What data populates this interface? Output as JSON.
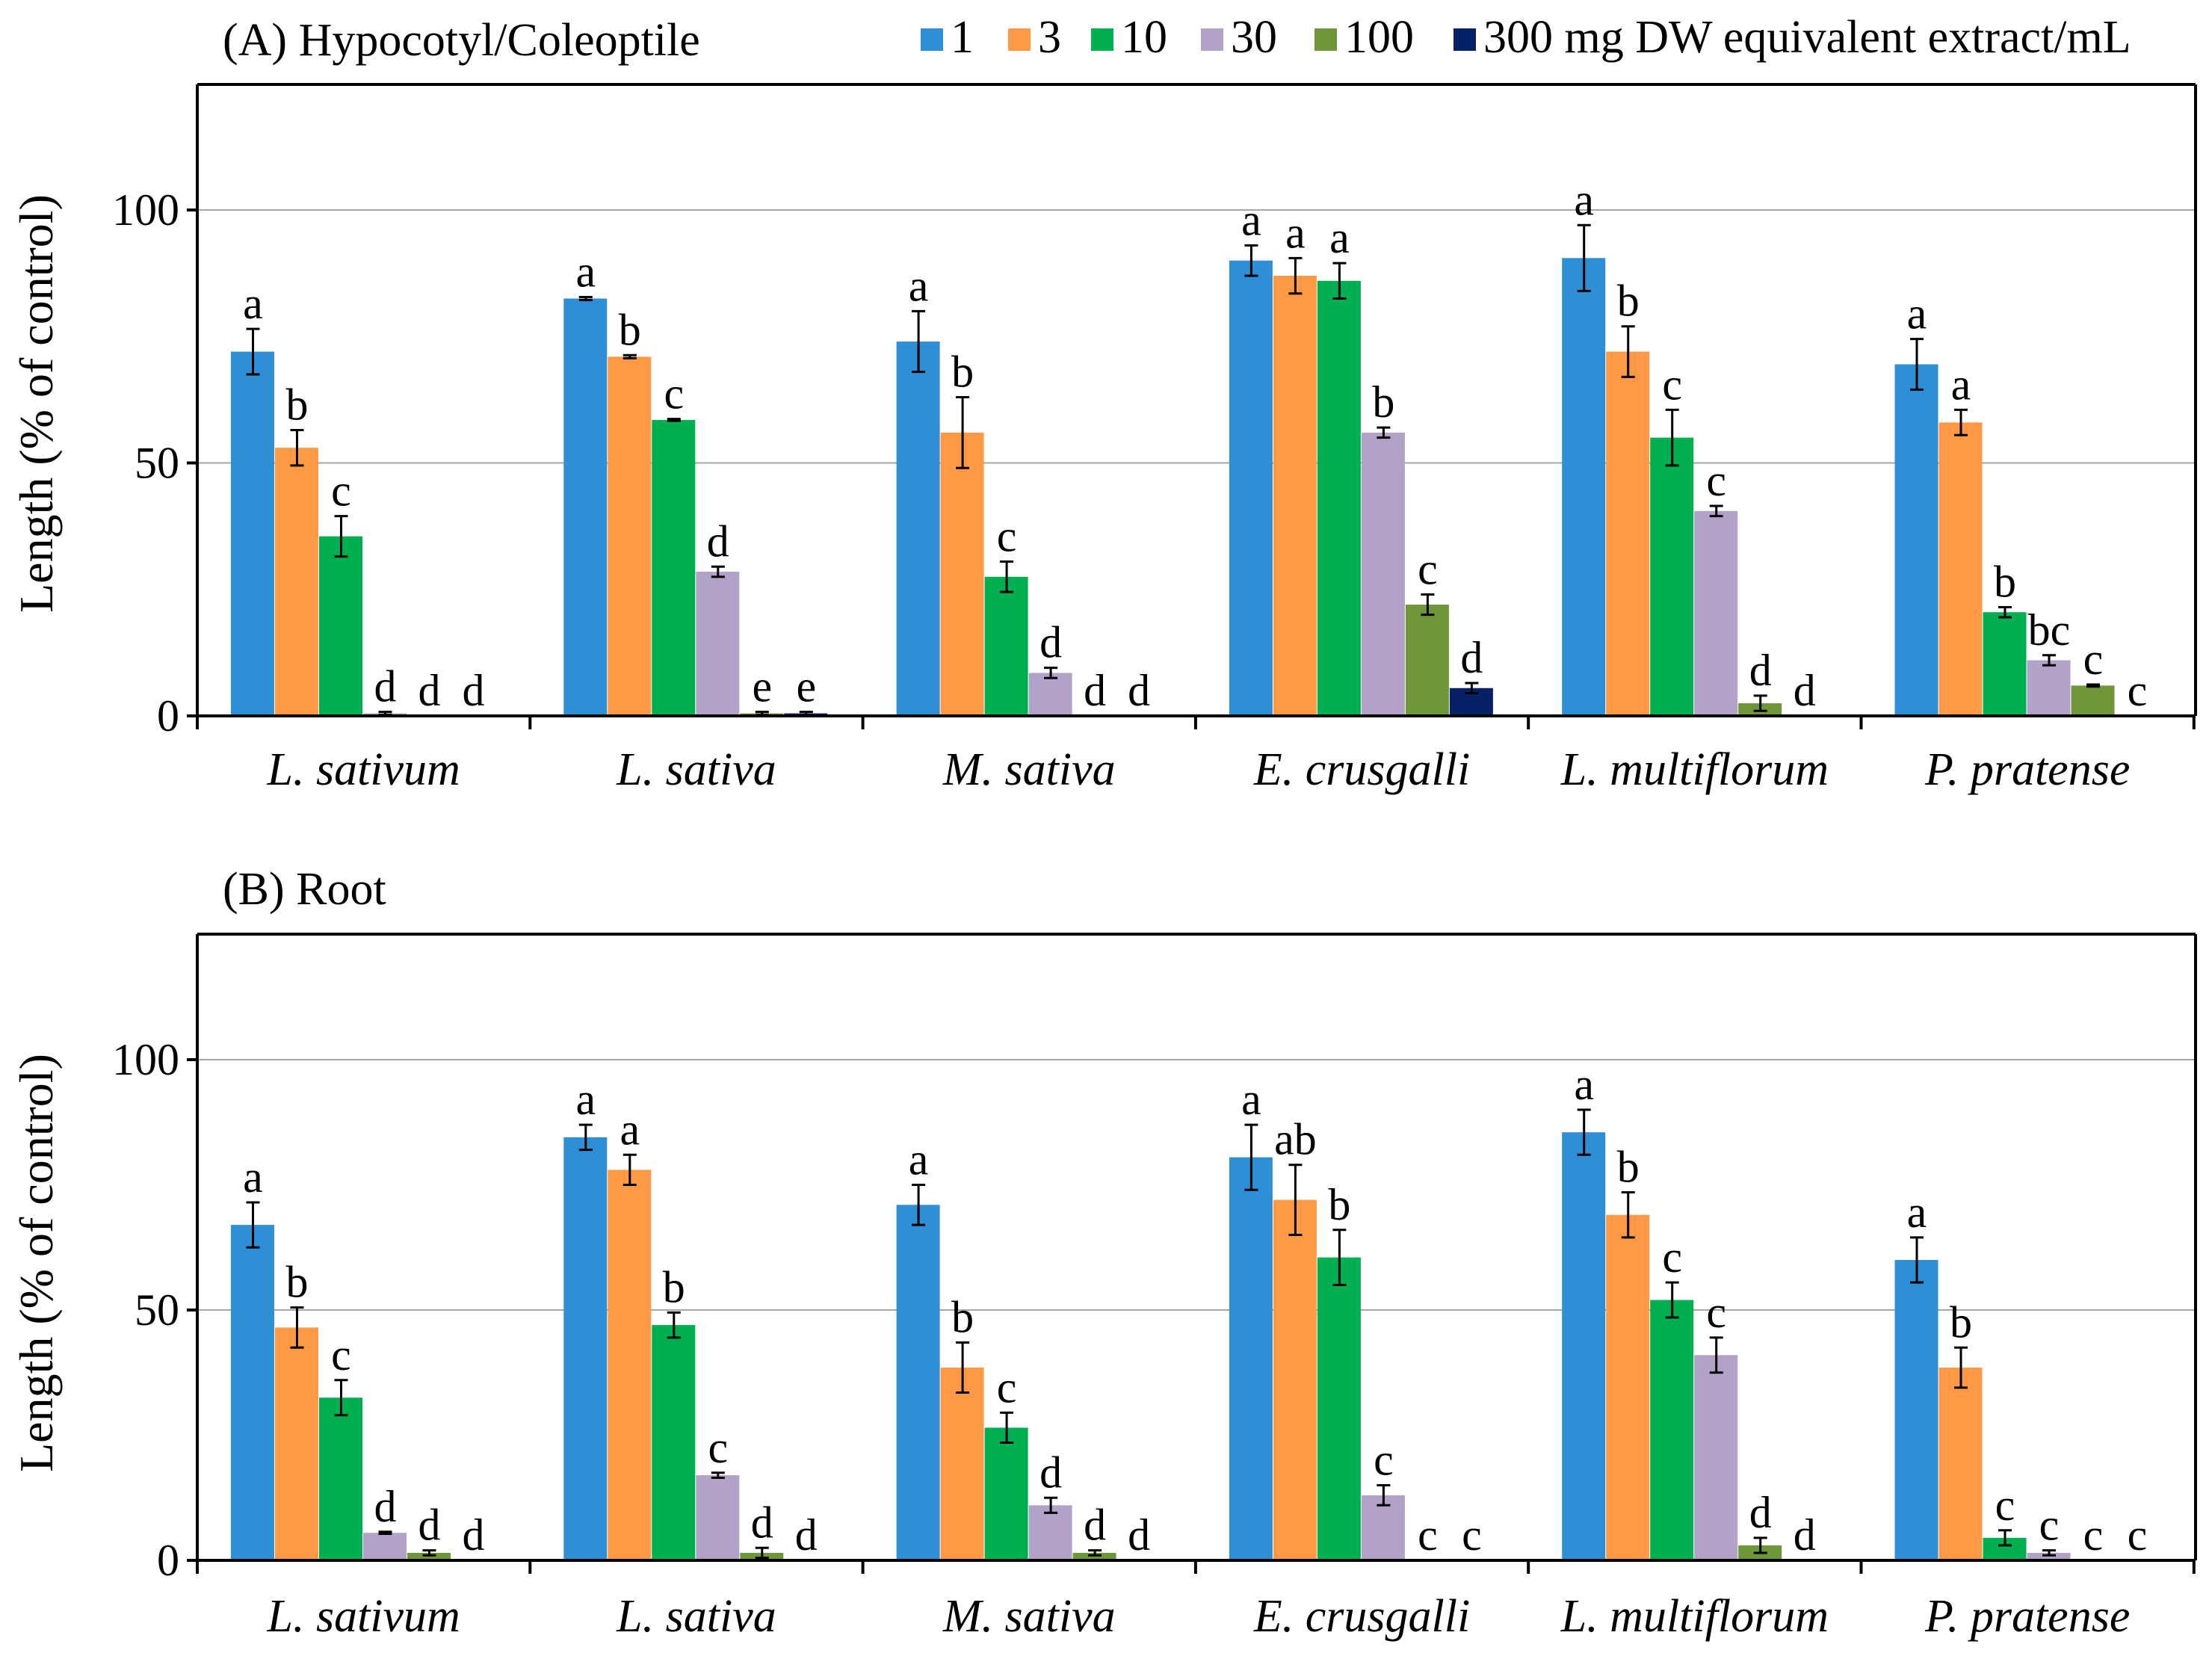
{
  "chart_data": {
    "type": "bar",
    "legend": {
      "entries": [
        "1",
        "3",
        "10",
        "30",
        "100",
        "300 mg DW equivalent extract/mL"
      ],
      "placement": "top-right"
    },
    "colors": [
      "#2E8FD6",
      "#FF9945",
      "#00B050",
      "#B3A2C7",
      "#70963A",
      "#062166"
    ],
    "panels": [
      {
        "title": "(A) Hypocotyl/Coleoptile",
        "ylabel": "Length (% of control)",
        "ylim": [
          0,
          125
        ],
        "yticks": [
          0,
          50,
          100
        ],
        "grid": true,
        "categories": [
          "L. sativum",
          "L. sativa",
          "M. sativa",
          "E. crusgalli",
          "L. multiflorum",
          "P. pratense"
        ],
        "series": [
          {
            "name": "1",
            "values": [
              72,
              82.5,
              74,
              90,
              90.5,
              69.5
            ],
            "errors": [
              4.5,
              0.3,
              6,
              3,
              6.5,
              5
            ],
            "letters": [
              "a",
              "a",
              "a",
              "a",
              "a",
              "a"
            ]
          },
          {
            "name": "3",
            "values": [
              53,
              71,
              56,
              87,
              72,
              58
            ],
            "errors": [
              3.5,
              0.3,
              7,
              3.5,
              5,
              2.5
            ],
            "letters": [
              "b",
              "b",
              "b",
              "a",
              "b",
              "a"
            ]
          },
          {
            "name": "10",
            "values": [
              35.5,
              58.5,
              27.5,
              86,
              55,
              20.5
            ],
            "errors": [
              4,
              0.2,
              3,
              3.5,
              5.5,
              1
            ],
            "letters": [
              "c",
              "c",
              "c",
              "a",
              "c",
              "b"
            ]
          },
          {
            "name": "30",
            "values": [
              0.5,
              28.5,
              8.5,
              56,
              40.5,
              11
            ],
            "errors": [
              0.3,
              1,
              1,
              1,
              1,
              1
            ],
            "letters": [
              "d",
              "d",
              "d",
              "b",
              "c",
              "bc"
            ]
          },
          {
            "name": "100",
            "values": [
              0,
              0.5,
              0,
              22,
              2.5,
              6
            ],
            "errors": [
              0,
              0.3,
              0,
              2,
              1.5,
              0.2
            ],
            "letters": [
              "d",
              "e",
              "d",
              "c",
              "d",
              "c"
            ]
          },
          {
            "name": "300 mg DW equivalent extract/mL",
            "values": [
              0,
              0.5,
              0,
              5.5,
              0,
              0
            ],
            "errors": [
              0,
              0.3,
              0,
              1,
              0,
              0
            ],
            "letters": [
              "d",
              "e",
              "d",
              "d",
              "d",
              "c"
            ]
          }
        ]
      },
      {
        "title": "(B) Root",
        "ylabel": "Length (% of control)",
        "ylim": [
          0,
          125
        ],
        "yticks": [
          0,
          50,
          100
        ],
        "grid": true,
        "categories": [
          "L. sativum",
          "L. sativa",
          "M. sativa",
          "E. crusgalli",
          "L. multiflorum",
          "P. pratense"
        ],
        "series": [
          {
            "name": "1",
            "values": [
              67,
              84.5,
              71,
              80.5,
              85.5,
              60
            ],
            "errors": [
              4.5,
              2.5,
              4,
              6.5,
              4.5,
              4.5
            ],
            "letters": [
              "a",
              "a",
              "a",
              "a",
              "a",
              "a"
            ]
          },
          {
            "name": "3",
            "values": [
              46.5,
              78,
              38.5,
              72,
              69,
              38.5
            ],
            "errors": [
              4,
              3,
              5,
              7,
              4.5,
              4
            ],
            "letters": [
              "b",
              "a",
              "b",
              "ab",
              "b",
              "b"
            ]
          },
          {
            "name": "10",
            "values": [
              32.5,
              47,
              26.5,
              60.5,
              52,
              4.5
            ],
            "errors": [
              3.5,
              2.5,
              3,
              5.5,
              3.5,
              1.5
            ],
            "letters": [
              "c",
              "b",
              "c",
              "b",
              "c",
              "c"
            ]
          },
          {
            "name": "30",
            "values": [
              5.5,
              17,
              11,
              13,
              41,
              1.5
            ],
            "errors": [
              0.2,
              0.5,
              1.5,
              2,
              3.5,
              0.5
            ],
            "letters": [
              "d",
              "c",
              "d",
              "c",
              "c",
              "c"
            ]
          },
          {
            "name": "100",
            "values": [
              1.5,
              1.5,
              1.5,
              0,
              3,
              0
            ],
            "errors": [
              0.5,
              1,
              0.5,
              0,
              1.5,
              0
            ],
            "letters": [
              "d",
              "d",
              "d",
              "c",
              "d",
              "c"
            ]
          },
          {
            "name": "300 mg DW equivalent extract/mL",
            "values": [
              0,
              0,
              0,
              0,
              0,
              0
            ],
            "errors": [
              0,
              0,
              0,
              0,
              0,
              0
            ],
            "letters": [
              "d",
              "d",
              "d",
              "c",
              "d",
              "c"
            ]
          }
        ]
      }
    ]
  }
}
